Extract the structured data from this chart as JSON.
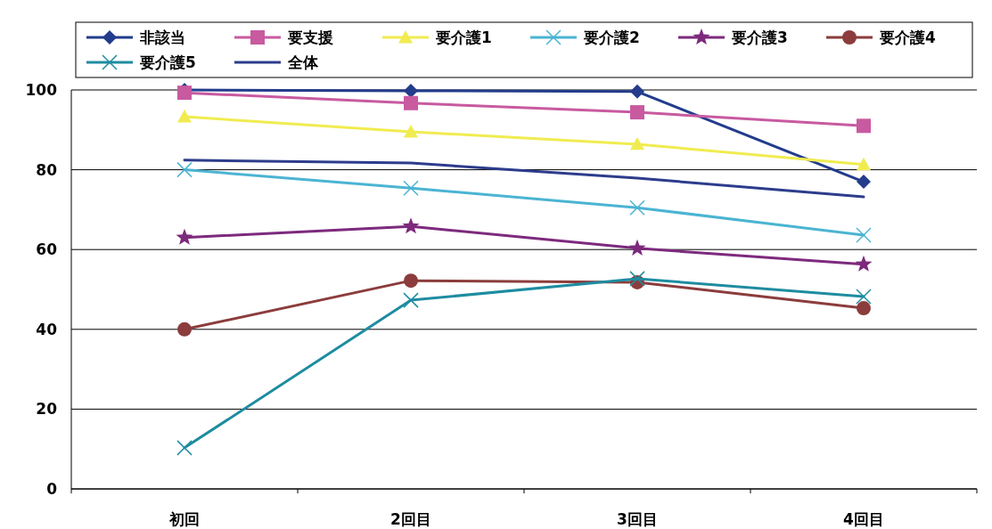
{
  "chart_data": {
    "type": "line",
    "categories": [
      "初回",
      "2回目",
      "3回目",
      "4回目"
    ],
    "ylim": [
      0,
      100
    ],
    "yticks": [
      0,
      20,
      40,
      60,
      80,
      100
    ],
    "grid": "y",
    "legend": "top",
    "series": [
      {
        "name": "非該当",
        "color": "#233c8c",
        "marker": "diamond",
        "values": [
          100,
          99.8,
          99.6,
          77
        ]
      },
      {
        "name": "要支援",
        "color": "#c85aa0",
        "marker": "square",
        "values": [
          99.3,
          96.7,
          94.4,
          91
        ]
      },
      {
        "name": "要介護1",
        "color": "#f0ec50",
        "marker": "triangle",
        "values": [
          93.3,
          89.5,
          86.4,
          81.3
        ]
      },
      {
        "name": "要介護2",
        "color": "#4bb4d2",
        "marker": "cross",
        "values": [
          80,
          75.4,
          70.5,
          63.6
        ]
      },
      {
        "name": "要介護3",
        "color": "#7d2a7d",
        "marker": "star",
        "values": [
          63,
          65.8,
          60.3,
          56.3
        ]
      },
      {
        "name": "要介護4",
        "color": "#8c3c3c",
        "marker": "circle",
        "values": [
          40,
          52.2,
          51.8,
          45.3
        ]
      },
      {
        "name": "要介護5",
        "color": "#1e8ca0",
        "marker": "cross",
        "values": [
          10.3,
          47.3,
          52.7,
          48.2
        ]
      },
      {
        "name": "全体",
        "color": "#2d3c8c",
        "marker": "none",
        "values": [
          82.4,
          81.7,
          77.9,
          73.2
        ]
      }
    ]
  }
}
